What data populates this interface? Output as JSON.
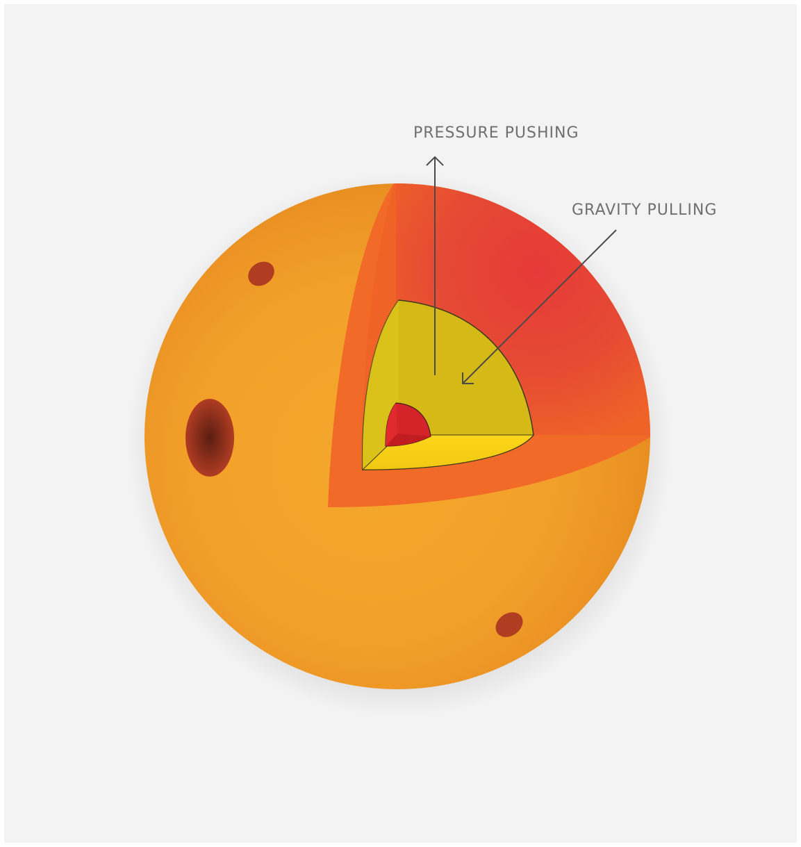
{
  "labels": {
    "pressure": "PRESSURE PUSHING",
    "gravity": "GRAVITY PULLING"
  },
  "colors": {
    "background": "#f3f3f3",
    "star_surface": "#f2a12a",
    "outer_layer": "#f26a28",
    "inner_layer_glow": "#e43d36",
    "middle_layer": "#d4b917",
    "middle_layer_bottom": "#f7d51a",
    "core": "#d4242a",
    "spot": "#b03c22",
    "arrow": "#4a4a4a",
    "label_text": "#6f6f6f"
  },
  "icons": {
    "pressure_arrow": "arrow-up-icon",
    "gravity_arrow": "arrow-down-left-icon"
  }
}
